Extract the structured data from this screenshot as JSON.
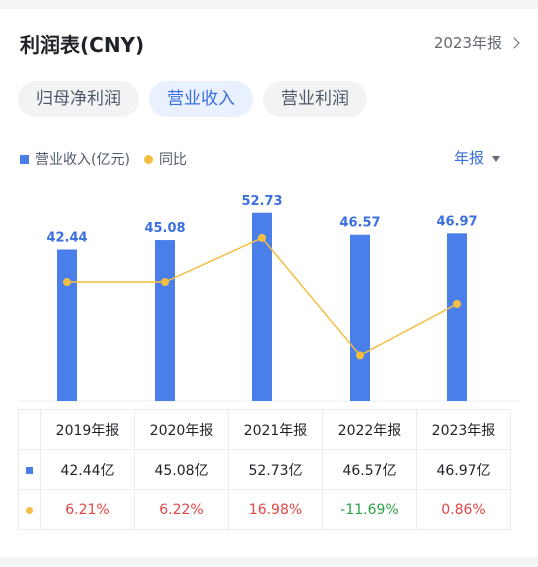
{
  "header": {
    "title": "利润表(CNY)",
    "report_link": "2023年报"
  },
  "tabs": [
    {
      "label": "归母净利润",
      "active": false
    },
    {
      "label": "营业收入",
      "active": true
    },
    {
      "label": "营业利润",
      "active": false
    }
  ],
  "legend": {
    "bar_label": "营业收入(亿元)",
    "line_label": "同比"
  },
  "period_select": {
    "value": "年报"
  },
  "colors": {
    "bar": "#4a7ee8",
    "line": "#f4be43",
    "accent": "#3a6fe0",
    "positive": "#e54545",
    "negative": "#2aa146"
  },
  "chart_data": {
    "type": "bar",
    "categories": [
      "2019年报",
      "2020年报",
      "2021年报",
      "2022年报",
      "2023年报"
    ],
    "series": [
      {
        "name": "营业收入(亿元)",
        "type": "bar",
        "values": [
          42.44,
          45.08,
          52.73,
          46.57,
          46.97
        ],
        "labels": [
          "42.44",
          "45.08",
          "52.73",
          "46.57",
          "46.97"
        ]
      },
      {
        "name": "同比",
        "type": "line",
        "values": [
          6.21,
          6.22,
          16.98,
          -11.69,
          0.86
        ]
      }
    ],
    "grid": false
  },
  "table": {
    "headers": [
      "2019年报",
      "2020年报",
      "2021年报",
      "2022年报",
      "2023年报"
    ],
    "revenue": [
      "42.44亿",
      "45.08亿",
      "52.73亿",
      "46.57亿",
      "46.97亿"
    ],
    "yoy": [
      "6.21%",
      "6.22%",
      "16.98%",
      "-11.69%",
      "0.86%"
    ]
  }
}
